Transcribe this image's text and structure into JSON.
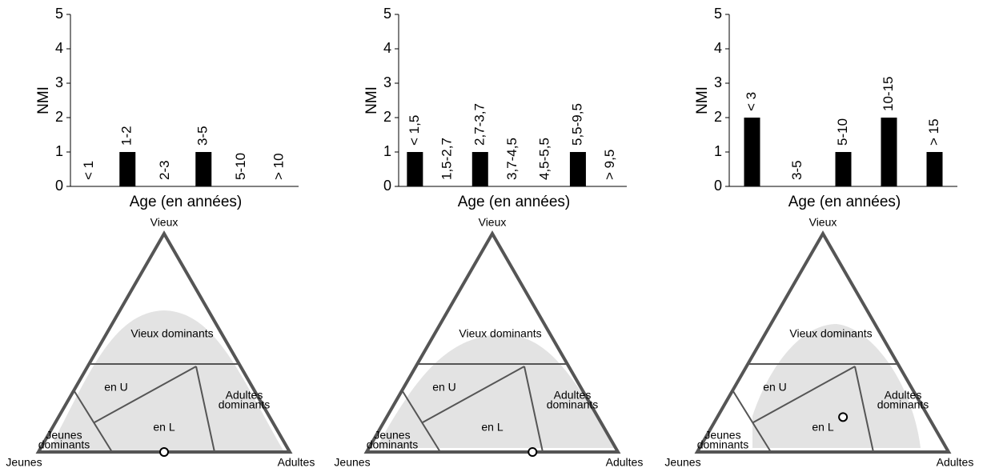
{
  "chart_data": [
    {
      "type": "bar",
      "ylabel": "NMI",
      "xlabel": "Age (en années)",
      "categories": [
        "< 1",
        "1-2",
        "2-3",
        "3-5",
        "5-10",
        "> 10"
      ],
      "values": [
        0,
        1,
        0,
        1,
        0,
        0
      ],
      "color": "#000000",
      "ylim": [
        0,
        5
      ],
      "yticks": [
        0,
        1,
        2,
        3,
        4,
        5
      ]
    },
    {
      "type": "bar",
      "ylabel": "NMI",
      "xlabel": "Age (en années)",
      "categories": [
        "< 1,5",
        "1,5-2,7",
        "2,7-3,7",
        "3,7-4,5",
        "4,5-5,5",
        "5,5-9,5",
        "> 9,5"
      ],
      "values": [
        1,
        0,
        1,
        0,
        0,
        1,
        0
      ],
      "color": "#000000",
      "ylim": [
        0,
        5
      ],
      "yticks": [
        0,
        1,
        2,
        3,
        4,
        5
      ]
    },
    {
      "type": "bar",
      "ylabel": "NMI",
      "xlabel": "Age (en années)",
      "categories": [
        "< 3",
        "3-5",
        "5-10",
        "10-15",
        "> 15"
      ],
      "values": [
        2,
        0,
        1,
        2,
        1
      ],
      "color": "#000000",
      "ylim": [
        0,
        5
      ],
      "yticks": [
        0,
        1,
        2,
        3,
        4,
        5
      ]
    },
    {
      "type": "ternary",
      "corners": {
        "top": "Vieux",
        "left": "Jeunes",
        "right": "Adultes"
      },
      "regions": [
        [
          "Vieux dominants"
        ],
        [
          "en U"
        ],
        [
          "en L"
        ],
        [
          "Adultes",
          "dominants"
        ],
        [
          "Jeunes",
          "dominants"
        ]
      ],
      "point": {
        "jeunes": 50,
        "adultes": 50,
        "vieux": 0
      }
    },
    {
      "type": "ternary",
      "corners": {
        "top": "Vieux",
        "left": "Jeunes",
        "right": "Adultes"
      },
      "regions": [
        [
          "Vieux dominants"
        ],
        [
          "en U"
        ],
        [
          "en L"
        ],
        [
          "Adultes",
          "dominants"
        ],
        [
          "Jeunes",
          "dominants"
        ]
      ],
      "point": {
        "jeunes": 34,
        "adultes": 66,
        "vieux": 0
      }
    },
    {
      "type": "ternary",
      "corners": {
        "top": "Vieux",
        "left": "Jeunes",
        "right": "Adultes"
      },
      "regions": [
        [
          "Vieux dominants"
        ],
        [
          "en U"
        ],
        [
          "en L"
        ],
        [
          "Adultes",
          "dominants"
        ],
        [
          "Jeunes",
          "dominants"
        ]
      ],
      "point": {
        "jeunes": 34,
        "adultes": 50,
        "vieux": 16
      }
    }
  ]
}
